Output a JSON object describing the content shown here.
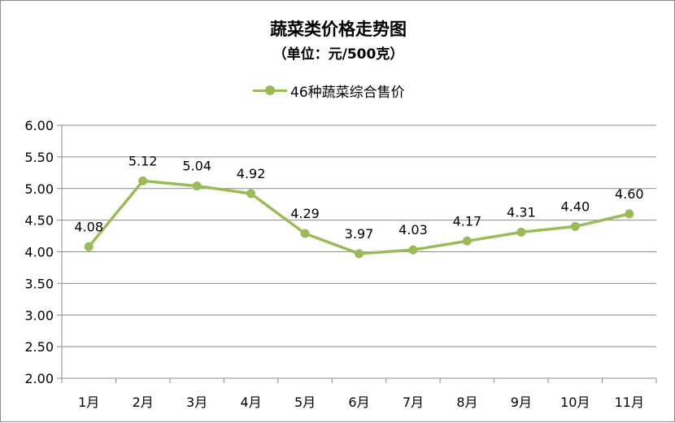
{
  "chart_data": {
    "type": "line",
    "title": "蔬菜类价格走势图",
    "subtitle": "（单位：元/500克）",
    "categories": [
      "1月",
      "2月",
      "3月",
      "4月",
      "5月",
      "6月",
      "7月",
      "8月",
      "9月",
      "10月",
      "11月"
    ],
    "series": [
      {
        "name": "46种蔬菜综合售价",
        "values": [
          4.08,
          5.12,
          5.04,
          4.92,
          4.29,
          3.97,
          4.03,
          4.17,
          4.31,
          4.4,
          4.6
        ],
        "labels": [
          "4.08",
          "5.12",
          "5.04",
          "4.92",
          "4.29",
          "3.97",
          "4.03",
          "4.17",
          "4.31",
          "4.40",
          "4.60"
        ],
        "color": "#9bbb59"
      }
    ],
    "yticks": [
      "2.00",
      "2.50",
      "3.00",
      "3.50",
      "4.00",
      "4.50",
      "5.00",
      "5.50",
      "6.00"
    ],
    "ylim": [
      2.0,
      6.0
    ],
    "grid": true,
    "legend": "top-center",
    "xlabel": "",
    "ylabel": ""
  }
}
